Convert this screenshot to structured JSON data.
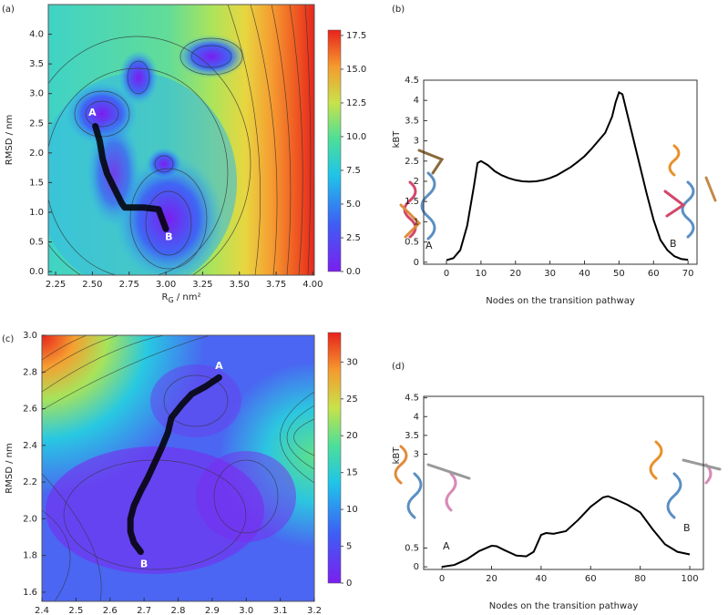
{
  "chart_data": [
    {
      "type": "contour",
      "panel_label": "(a)",
      "xlabel": "RG / nm²",
      "ylabel": "RMSD / nm",
      "xlim": [
        2.2,
        4.01
      ],
      "ylim": [
        -0.06,
        4.5
      ],
      "xticks": [
        2.25,
        {
          "value": 2.5,
          "label": "2.50"
        },
        2.75,
        {
          "value": 3,
          "label": "3.00"
        },
        3.25,
        {
          "value": 3.5,
          "label": "3.50"
        },
        3.75,
        {
          "value": 4,
          "label": "4.00"
        }
      ],
      "yticks": [
        {
          "value": 0,
          "label": "0.0"
        },
        0.5,
        {
          "value": 1,
          "label": "1.0"
        },
        1.5,
        {
          "value": 2,
          "label": "2.0"
        },
        2.5,
        {
          "value": 3,
          "label": "3.0"
        },
        3.5,
        {
          "value": 4,
          "label": "4.0"
        }
      ],
      "colorbar": {
        "lim": [
          0,
          17.9
        ],
        "ticks": [
          {
            "value": 0,
            "label": "0.0"
          },
          2.5,
          {
            "value": 5,
            "label": "5.0"
          },
          7.5,
          {
            "value": 10,
            "label": "10.0"
          },
          12.5,
          {
            "value": 15,
            "label": "15.0"
          },
          17.5
        ]
      },
      "path": {
        "color": "#000000",
        "x": [
          2.52,
          2.55,
          2.57,
          2.6,
          2.65,
          2.7,
          2.72,
          2.85,
          2.95,
          2.98,
          3.0
        ],
        "y": [
          2.45,
          2.2,
          1.9,
          1.65,
          1.4,
          1.15,
          1.08,
          1.08,
          1.05,
          0.85,
          0.72
        ]
      },
      "annotations": [
        {
          "text": "A"
        },
        {
          "text": "B"
        }
      ]
    },
    {
      "type": "line",
      "panel_label": "(b)",
      "xlabel": "Nodes on the transition pathway",
      "ylabel": "kBT",
      "xlim": [
        -6.6,
        72.6
      ],
      "ylim": [
        -0.05,
        4.5
      ],
      "xticks": [
        0,
        10,
        20,
        30,
        40,
        50,
        60,
        70
      ],
      "yticks": [
        0,
        0.5,
        1,
        1.5,
        2,
        2.5,
        3,
        3.5,
        4,
        4.5
      ],
      "color": "#000000",
      "x": [
        0,
        2,
        4,
        6,
        8,
        9,
        10,
        12,
        14,
        16,
        18,
        20,
        22,
        24,
        26,
        28,
        30,
        32,
        34,
        36,
        38,
        40,
        42,
        44,
        46,
        48,
        49,
        50,
        51,
        52,
        54,
        56,
        58,
        60,
        62,
        64,
        66,
        68,
        70
      ],
      "values": [
        0.05,
        0.1,
        0.3,
        0.9,
        1.9,
        2.45,
        2.5,
        2.4,
        2.25,
        2.15,
        2.08,
        2.03,
        2.0,
        1.99,
        2.0,
        2.03,
        2.08,
        2.15,
        2.25,
        2.35,
        2.48,
        2.62,
        2.8,
        3.0,
        3.2,
        3.6,
        3.95,
        4.2,
        4.15,
        3.8,
        3.1,
        2.4,
        1.7,
        1.05,
        0.55,
        0.3,
        0.15,
        0.08,
        0.06
      ],
      "annotations": [
        {
          "text": "A"
        },
        {
          "text": "B"
        }
      ]
    },
    {
      "type": "contour",
      "panel_label": "(c)",
      "xlabel": "RG / nm²",
      "ylabel": "RMSD / nm",
      "xlim": [
        2.4,
        3.2
      ],
      "ylim": [
        1.55,
        3.0
      ],
      "xticks": [
        2.4,
        2.5,
        2.6,
        2.7,
        2.8,
        2.9,
        {
          "value": 3,
          "label": "3.0"
        },
        3.1,
        3.2
      ],
      "yticks": [
        1.6,
        1.8,
        {
          "value": 2,
          "label": "2.0"
        },
        2.2,
        2.4,
        2.6,
        2.8,
        {
          "value": 3,
          "label": "3.0"
        }
      ],
      "colorbar": {
        "lim": [
          0,
          34
        ],
        "ticks": [
          0,
          5,
          10,
          15,
          20,
          25,
          30
        ]
      },
      "path": {
        "color": "#000000",
        "x": [
          2.92,
          2.88,
          2.84,
          2.81,
          2.78,
          2.77,
          2.75,
          2.73,
          2.71,
          2.69,
          2.67,
          2.66,
          2.66,
          2.67,
          2.69
        ],
        "y": [
          2.77,
          2.72,
          2.68,
          2.62,
          2.55,
          2.47,
          2.38,
          2.3,
          2.22,
          2.15,
          2.07,
          2.0,
          1.93,
          1.87,
          1.82
        ]
      },
      "annotations": [
        {
          "text": "A"
        },
        {
          "text": "B"
        }
      ]
    },
    {
      "type": "line",
      "panel_label": "(d)",
      "xlabel": "Nodes on the transition pathway",
      "ylabel": "kBT",
      "xlim": [
        -7.4,
        105.5
      ],
      "ylim": [
        -0.07,
        4.54
      ],
      "xticks": [
        0,
        20,
        40,
        60,
        80,
        100
      ],
      "yticks": [
        0,
        0.5,
        3,
        3.5,
        4,
        4.5
      ],
      "color": "#000000",
      "x": [
        0,
        5,
        10,
        15,
        20,
        22,
        25,
        30,
        34,
        37,
        40,
        42,
        45,
        50,
        55,
        60,
        65,
        67,
        70,
        75,
        80,
        85,
        90,
        95,
        100
      ],
      "values": [
        0,
        0.05,
        0.2,
        0.42,
        0.56,
        0.55,
        0.45,
        0.3,
        0.28,
        0.4,
        0.85,
        0.9,
        0.88,
        0.95,
        1.25,
        1.6,
        1.85,
        1.88,
        1.8,
        1.65,
        1.45,
        1.0,
        0.6,
        0.4,
        0.33
      ],
      "annotations": [
        {
          "text": "A"
        },
        {
          "text": "B"
        }
      ]
    }
  ]
}
